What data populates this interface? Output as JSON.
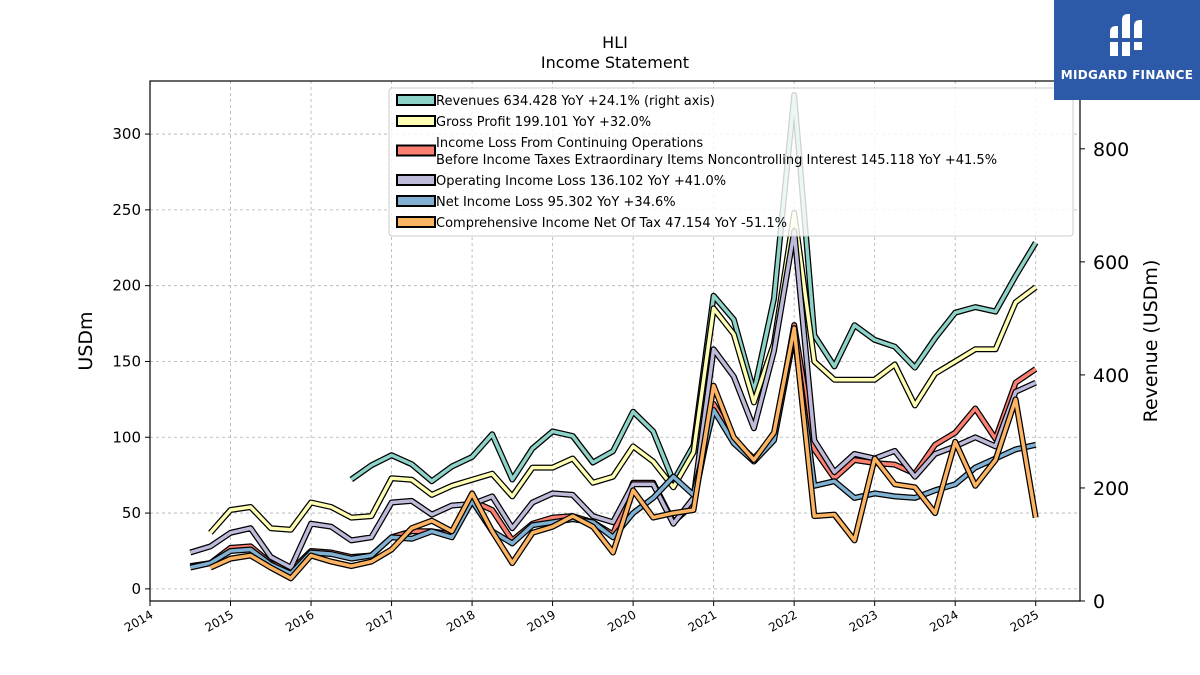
{
  "chart_data": {
    "type": "line",
    "title": "HLI",
    "subtitle": "Income Statement",
    "ylabel": "USDm",
    "y2label": "Revenue (USDm)",
    "ylim": [
      -8,
      335
    ],
    "y2lim": [
      0,
      920
    ],
    "yticks": [
      0,
      50,
      100,
      150,
      200,
      250,
      300
    ],
    "y2ticks": [
      0,
      200,
      400,
      600,
      800
    ],
    "xlim": [
      2014.0,
      2025.55
    ],
    "xticks": [
      2014,
      2015,
      2016,
      2017,
      2018,
      2019,
      2020,
      2021,
      2022,
      2023,
      2024,
      2025
    ],
    "grid": true,
    "legend_position": "top-center",
    "series": [
      {
        "name": "Revenues  634.428 YoY +24.1% (right axis)",
        "axis": "right",
        "color": "#8dd3c7",
        "x": [
          2016.5,
          2016.75,
          2017.0,
          2017.25,
          2017.5,
          2017.75,
          2018.0,
          2018.25,
          2018.5,
          2018.75,
          2019.0,
          2019.25,
          2019.5,
          2019.75,
          2020.0,
          2020.25,
          2020.5,
          2020.75,
          2021.0,
          2021.25,
          2021.5,
          2021.75,
          2022.0,
          2022.25,
          2022.5,
          2022.75,
          2023.0,
          2023.25,
          2023.5,
          2023.75,
          2024.0,
          2024.25,
          2024.5,
          2024.75,
          2025.0
        ],
        "y": [
          215,
          240,
          258,
          242,
          212,
          238,
          255,
          295,
          215,
          270,
          300,
          292,
          245,
          265,
          335,
          300,
          212,
          275,
          540,
          498,
          370,
          535,
          895,
          470,
          415,
          488,
          462,
          450,
          413,
          465,
          510,
          520,
          512,
          575,
          634
        ]
      },
      {
        "name": "Gross Profit  199.101 YoY +32.0%",
        "axis": "left",
        "color": "#ffffb3",
        "x": [
          2014.75,
          2015.0,
          2015.25,
          2015.5,
          2015.75,
          2016.0,
          2016.25,
          2016.5,
          2016.75,
          2017.0,
          2017.25,
          2017.5,
          2017.75,
          2018.0,
          2018.25,
          2018.5,
          2018.75,
          2019.0,
          2019.25,
          2019.5,
          2019.75,
          2020.0,
          2020.25,
          2020.5,
          2020.75,
          2021.0,
          2021.25,
          2021.5,
          2021.75,
          2022.0,
          2022.25,
          2022.5,
          2022.75,
          2023.0,
          2023.25,
          2023.5,
          2023.75,
          2024.0,
          2024.25,
          2024.5,
          2024.75,
          2025.0
        ],
        "y": [
          37,
          52,
          54,
          40,
          39,
          57,
          54,
          47,
          48,
          73,
          72,
          62,
          68,
          72,
          76,
          61,
          80,
          80,
          86,
          70,
          74,
          94,
          84,
          67,
          90,
          185,
          168,
          123,
          162,
          248,
          150,
          138,
          138,
          138,
          148,
          121,
          142,
          150,
          158,
          158,
          189,
          199
        ]
      },
      {
        "name": "Income Loss From Continuing Operations\nBefore Income Taxes Extraordinary Items Noncontrolling Interest  145.118 YoY +41.5%",
        "axis": "left",
        "color": "#fb8072",
        "x": [
          2014.5,
          2014.75,
          2015.0,
          2015.25,
          2015.5,
          2015.75,
          2016.0,
          2016.25,
          2016.5,
          2016.75,
          2017.0,
          2017.25,
          2017.5,
          2017.75,
          2018.0,
          2018.25,
          2018.5,
          2018.75,
          2019.0,
          2019.25,
          2019.5,
          2019.75,
          2020.0,
          2020.25,
          2020.5,
          2020.75,
          2021.0,
          2021.25,
          2021.5,
          2021.75,
          2022.0,
          2022.25,
          2022.5,
          2022.75,
          2023.0,
          2023.25,
          2023.5,
          2023.75,
          2024.0,
          2024.25,
          2024.5,
          2024.75,
          2025.0
        ],
        "y": [
          15,
          17,
          27,
          28,
          17,
          12,
          25,
          24,
          21,
          22,
          34,
          38,
          38,
          36,
          58,
          52,
          32,
          43,
          47,
          48,
          44,
          36,
          70,
          70,
          44,
          56,
          122,
          98,
          86,
          100,
          174,
          92,
          73,
          85,
          83,
          82,
          76,
          95,
          103,
          119,
          99,
          136,
          145
        ]
      },
      {
        "name": "Operating Income Loss  136.102 YoY +41.0%",
        "axis": "left",
        "color": "#bebada",
        "x": [
          2014.5,
          2014.75,
          2015.0,
          2015.25,
          2015.5,
          2015.75,
          2016.0,
          2016.25,
          2016.5,
          2016.75,
          2017.0,
          2017.25,
          2017.5,
          2017.75,
          2018.0,
          2018.25,
          2018.5,
          2018.75,
          2019.0,
          2019.25,
          2019.5,
          2019.75,
          2020.0,
          2020.25,
          2020.5,
          2020.75,
          2021.0,
          2021.25,
          2021.5,
          2021.75,
          2022.0,
          2022.25,
          2022.5,
          2022.75,
          2023.0,
          2023.25,
          2023.5,
          2023.75,
          2024.0,
          2024.25,
          2024.5,
          2024.75,
          2025.0
        ],
        "y": [
          24,
          28,
          37,
          40,
          21,
          14,
          43,
          41,
          32,
          34,
          57,
          58,
          49,
          55,
          56,
          61,
          40,
          57,
          63,
          62,
          48,
          44,
          69,
          69,
          43,
          60,
          158,
          140,
          106,
          157,
          236,
          98,
          77,
          89,
          86,
          91,
          74,
          89,
          94,
          100,
          94,
          130,
          136
        ]
      },
      {
        "name": "Net Income Loss  95.302 YoY +34.6%",
        "axis": "left",
        "color": "#80b1d3",
        "x": [
          2014.5,
          2014.75,
          2015.0,
          2015.25,
          2015.5,
          2015.75,
          2016.0,
          2016.25,
          2016.5,
          2016.75,
          2017.0,
          2017.25,
          2017.5,
          2017.75,
          2018.0,
          2018.25,
          2018.5,
          2018.75,
          2019.0,
          2019.25,
          2019.5,
          2019.75,
          2020.0,
          2020.25,
          2020.5,
          2020.75,
          2021.0,
          2021.25,
          2021.5,
          2021.75,
          2022.0,
          2022.25,
          2022.5,
          2022.75,
          2023.0,
          2023.25,
          2023.5,
          2023.75,
          2024.0,
          2024.25,
          2024.5,
          2024.75,
          2025.0
        ],
        "y": [
          14,
          17,
          25,
          26,
          16,
          10,
          24,
          23,
          20,
          22,
          34,
          33,
          38,
          34,
          58,
          38,
          30,
          42,
          44,
          46,
          44,
          34,
          50,
          60,
          74,
          62,
          118,
          96,
          84,
          98,
          168,
          68,
          71,
          60,
          63,
          61,
          60,
          65,
          69,
          80,
          86,
          92,
          95
        ]
      },
      {
        "name": "Comprehensive Income Net Of Tax  47.154 YoY -51.1%",
        "axis": "left",
        "color": "#fdb462",
        "x": [
          2014.75,
          2015.0,
          2015.25,
          2015.5,
          2015.75,
          2016.0,
          2016.25,
          2016.5,
          2016.75,
          2017.0,
          2017.25,
          2017.5,
          2017.75,
          2018.0,
          2018.25,
          2018.5,
          2018.75,
          2019.0,
          2019.25,
          2019.5,
          2019.75,
          2020.0,
          2020.25,
          2020.5,
          2020.75,
          2021.0,
          2021.25,
          2021.5,
          2021.75,
          2022.0,
          2022.25,
          2022.5,
          2022.75,
          2023.0,
          2023.25,
          2023.5,
          2023.75,
          2024.0,
          2024.25,
          2024.5,
          2024.75,
          2025.0
        ],
        "y": [
          14,
          20,
          22,
          14,
          7,
          22,
          18,
          15,
          18,
          26,
          40,
          45,
          38,
          63,
          38,
          17,
          37,
          41,
          48,
          41,
          24,
          65,
          47,
          50,
          52,
          134,
          100,
          85,
          103,
          172,
          48,
          49,
          32,
          86,
          69,
          67,
          50,
          97,
          68,
          85,
          125,
          47
        ]
      }
    ]
  },
  "branding": {
    "logo_text": "MIDGARD FINANCE"
  }
}
